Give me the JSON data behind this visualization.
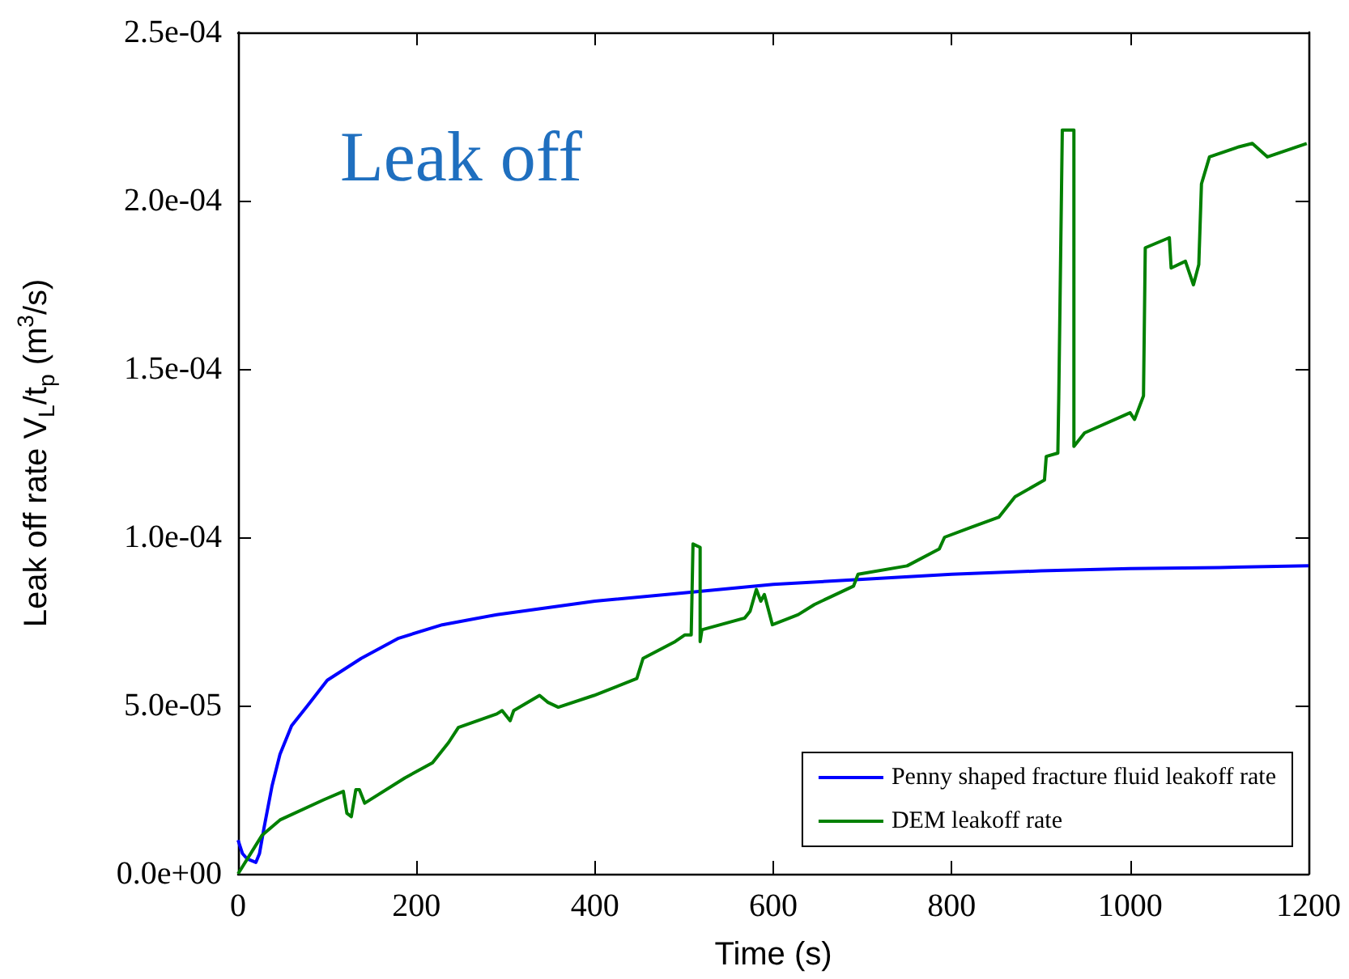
{
  "chart_data": {
    "type": "line",
    "title": "Leak off",
    "xlabel": "Time (s)",
    "ylabel": "Leak off rate V$_{L}$/t$_{p}$ (m$^{3}$/s)",
    "xlim": [
      0,
      1200
    ],
    "xticks": [
      0,
      200,
      400,
      600,
      800,
      1000,
      1200
    ],
    "ylim": [
      0,
      0.00025
    ],
    "yticks": [
      {
        "value": 0,
        "label": "0.0e+00"
      },
      {
        "value": 5e-05,
        "label": "5.0e-05"
      },
      {
        "value": 0.0001,
        "label": "1.0e-04"
      },
      {
        "value": 0.00015,
        "label": "1.5e-04"
      },
      {
        "value": 0.0002,
        "label": "2.0e-04"
      },
      {
        "value": 0.00025,
        "label": "2.5e-04"
      }
    ],
    "grid": false,
    "legend": "bottom right",
    "marker": "none",
    "line_style": "solid",
    "series": [
      {
        "name": "Penny shaped fracture fluid leakoff rate",
        "color": "#0000ff",
        "x": [
          0,
          5,
          10,
          20,
          24,
          29,
          38,
          47,
          60,
          78,
          100,
          138,
          180,
          229,
          290,
          400,
          500,
          600,
          700,
          800,
          900,
          1000,
          1100,
          1200
        ],
        "values": [
          1e-05,
          6e-06,
          4.5e-06,
          3.4e-06,
          6e-06,
          1.35e-05,
          2.6e-05,
          3.55e-05,
          4.4e-05,
          5e-05,
          5.75e-05,
          6.4e-05,
          7e-05,
          7.4e-05,
          7.7e-05,
          8.1e-05,
          8.35e-05,
          8.6e-05,
          8.75e-05,
          8.9e-05,
          9e-05,
          9.07e-05,
          9.1e-05,
          9.15e-05
        ]
      },
      {
        "name": "DEM leakoff rate",
        "color": "#008000",
        "x": [
          0,
          27,
          47,
          96,
          118,
          122,
          127,
          132,
          136,
          142,
          187,
          218,
          236,
          247,
          290,
          296,
          305,
          309,
          338,
          347,
          359,
          399,
          447,
          454,
          490,
          501,
          508,
          510,
          518,
          518,
          520,
          568,
          574,
          581,
          586,
          590,
          599,
          628,
          646,
          662,
          690,
          695,
          750,
          786,
          792,
          822,
          853,
          871,
          904,
          906,
          919,
          920,
          924,
          937,
          937,
          949,
          1000,
          1005,
          1015,
          1017,
          1044,
          1046,
          1062,
          1071,
          1077,
          1080,
          1089,
          1122,
          1137,
          1154,
          1198
        ],
        "values": [
          0,
          1.15e-05,
          1.6e-05,
          2.2e-05,
          2.45e-05,
          1.8e-05,
          1.7e-05,
          2.5e-05,
          2.5e-05,
          2.1e-05,
          2.85e-05,
          3.3e-05,
          3.9e-05,
          4.35e-05,
          4.75e-05,
          4.85e-05,
          4.55e-05,
          4.85e-05,
          5.3e-05,
          5.1e-05,
          4.95e-05,
          5.3e-05,
          5.8e-05,
          6.4e-05,
          6.9e-05,
          7.1e-05,
          7.1e-05,
          9.8e-05,
          9.7e-05,
          6.9e-05,
          7.25e-05,
          7.6e-05,
          7.8e-05,
          8.45e-05,
          8.1e-05,
          8.3e-05,
          7.4e-05,
          7.7e-05,
          8e-05,
          8.2e-05,
          8.55e-05,
          8.9e-05,
          9.15e-05,
          9.65e-05,
          0.0001,
          0.000103,
          0.000106,
          0.000112,
          0.000117,
          0.000124,
          0.000125,
          0.000141,
          0.000221,
          0.000221,
          0.000127,
          0.000131,
          0.000137,
          0.000135,
          0.000142,
          0.000186,
          0.000189,
          0.00018,
          0.000182,
          0.000175,
          0.000181,
          0.000205,
          0.000213,
          0.000216,
          0.000217,
          0.000213,
          0.000217
        ]
      }
    ]
  }
}
